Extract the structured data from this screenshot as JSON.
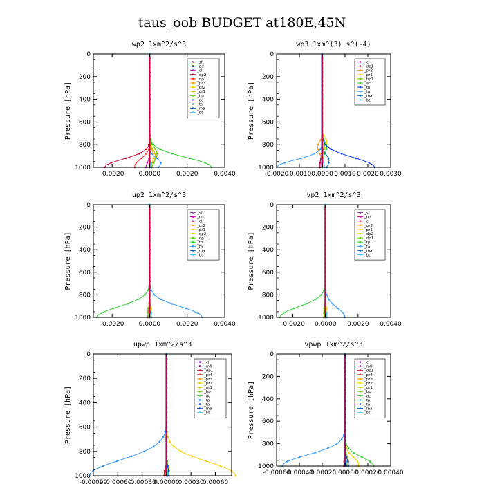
{
  "page_title": "taus_oob  BUDGET at180E,45N",
  "chart_data": [
    {
      "type": "line",
      "title": "wp2   1xm^2/s^3",
      "ylabel": "Pressure [hPa]",
      "ylim": [
        1000,
        0
      ],
      "yticks": [
        0,
        200,
        400,
        600,
        800,
        1000
      ],
      "xlim": [
        -0.003,
        0.004
      ],
      "xticks": [
        -0.002,
        0.0,
        0.002,
        0.004
      ],
      "xticklabels": [
        "-0.0020",
        "0.0000",
        "0.0020",
        "0.0040"
      ],
      "legend_position": "top-right",
      "series": [
        {
          "name": "_sf",
          "color": "#9933cc",
          "shape": "spike",
          "amp": 0,
          "center": 900,
          "width": 40
        },
        {
          "name": "_pd",
          "color": "#660066",
          "shape": "spike",
          "amp": 0,
          "center": 900,
          "width": 40
        },
        {
          "name": "_cl",
          "color": "#cc0099",
          "shape": "spike",
          "amp": -0.0002,
          "center": 1000,
          "width": 60
        },
        {
          "name": "_dp2",
          "color": "#cc0033",
          "shape": "spike",
          "amp": -0.0024,
          "center": 1000,
          "width": 100
        },
        {
          "name": "_dp1",
          "color": "#ff3333",
          "shape": "spike",
          "amp": -0.0008,
          "center": 990,
          "width": 90
        },
        {
          "name": "_pr3",
          "color": "#ff9900",
          "shape": "spike",
          "amp": 0.0002,
          "center": 900,
          "width": 80
        },
        {
          "name": "_pr2",
          "color": "#ffcc00",
          "shape": "spike",
          "amp": 0.0003,
          "center": 900,
          "width": 80
        },
        {
          "name": "_pr1",
          "color": "#cccc00",
          "shape": "spike",
          "amp": 0.0003,
          "center": 900,
          "width": 80
        },
        {
          "name": "_bp",
          "color": "#66cc00",
          "shape": "spike",
          "amp": 0.0004,
          "center": 880,
          "width": 80
        },
        {
          "name": "_ac",
          "color": "#33cc33",
          "shape": "spike",
          "amp": 0.0033,
          "center": 1000,
          "width": 120
        },
        {
          "name": "_ta",
          "color": "#3399ff",
          "shape": "spike",
          "amp": 0.0006,
          "center": 960,
          "width": 60
        },
        {
          "name": "_ma",
          "color": "#0066cc",
          "shape": "spike",
          "amp": 0.0001,
          "center": 990,
          "width": 40
        },
        {
          "name": "_bt",
          "color": "#33ccff",
          "shape": "spike",
          "amp": 0.0001,
          "center": 990,
          "width": 40
        }
      ]
    },
    {
      "type": "line",
      "title": "wp3   1xm^(3) s^(-4)",
      "ylabel": "Pressure [hPa]",
      "ylim": [
        1000,
        0
      ],
      "yticks": [
        0,
        200,
        400,
        600,
        800,
        1000
      ],
      "xlim": [
        -0.002,
        0.003
      ],
      "xticks": [
        -0.002,
        -0.001,
        0.0,
        0.001,
        0.002,
        0.003
      ],
      "xticklabels": [
        "-0.0020",
        "-0.0010",
        "0.0000",
        "0.0010",
        "0.0020",
        "0.0030"
      ],
      "legend_position": "top-right",
      "series": [
        {
          "name": "_cl",
          "color": "#cc0099",
          "shape": "spike",
          "amp": -0.0001,
          "center": 980,
          "width": 80
        },
        {
          "name": "_dp1",
          "color": "#cc0033",
          "shape": "spike",
          "amp": -0.0001,
          "center": 980,
          "width": 80
        },
        {
          "name": "_pr2",
          "color": "#ff9900",
          "shape": "spike",
          "amp": -0.0002,
          "center": 820,
          "width": 60
        },
        {
          "name": "_pr1",
          "color": "#ffcc00",
          "shape": "spike",
          "amp": 0.0002,
          "center": 780,
          "width": 60
        },
        {
          "name": "_bp1",
          "color": "#66cc00",
          "shape": "spike",
          "amp": 0.0001,
          "center": 800,
          "width": 60
        },
        {
          "name": "_ac",
          "color": "#33cc33",
          "shape": "spike",
          "amp": 0.0002,
          "center": 820,
          "width": 60
        },
        {
          "name": "_tp",
          "color": "#0033ff",
          "shape": "spike",
          "amp": 0.0023,
          "center": 1000,
          "width": 120
        },
        {
          "name": "_ta",
          "color": "#3399ff",
          "shape": "spike",
          "amp": -0.002,
          "center": 1000,
          "width": 90
        },
        {
          "name": "_ma",
          "color": "#0066cc",
          "shape": "spike",
          "amp": 0.0003,
          "center": 940,
          "width": 70
        },
        {
          "name": "_bt",
          "color": "#33ccff",
          "shape": "spike",
          "amp": 0.0001,
          "center": 990,
          "width": 40
        }
      ]
    },
    {
      "type": "line",
      "title": "up2   1xm^2/s^3",
      "ylabel": "Pressure [hPa]",
      "ylim": [
        1000,
        0
      ],
      "yticks": [
        0,
        200,
        400,
        600,
        800,
        1000
      ],
      "xlim": [
        -0.003,
        0.004
      ],
      "xticks": [
        -0.002,
        0.0,
        0.002,
        0.004
      ],
      "xticklabels": [
        "-0.0020",
        "0.0000",
        "0.0020",
        "0.0040"
      ],
      "legend_position": "top-right",
      "series": [
        {
          "name": "_sf",
          "color": "#9933cc",
          "shape": "spike",
          "amp": 0,
          "center": 900,
          "width": 40
        },
        {
          "name": "_pd",
          "color": "#cc0099",
          "shape": "spike",
          "amp": 0,
          "center": 900,
          "width": 40
        },
        {
          "name": "_cl",
          "color": "#ff3333",
          "shape": "spike",
          "amp": -0.0001,
          "center": 990,
          "width": 60
        },
        {
          "name": "_pr2",
          "color": "#ff9900",
          "shape": "spike",
          "amp": -0.0001,
          "center": 950,
          "width": 60
        },
        {
          "name": "_pr1",
          "color": "#ffcc00",
          "shape": "spike",
          "amp": 0.0001,
          "center": 950,
          "width": 60
        },
        {
          "name": "_dp2",
          "color": "#cccc00",
          "shape": "spike",
          "amp": -0.0001,
          "center": 950,
          "width": 60
        },
        {
          "name": "_dp1",
          "color": "#66cc00",
          "shape": "spike",
          "amp": -0.0001,
          "center": 950,
          "width": 60
        },
        {
          "name": "_tp",
          "color": "#33cc33",
          "shape": "spike",
          "amp": -0.0028,
          "center": 1000,
          "width": 130
        },
        {
          "name": "_ta",
          "color": "#3399ff",
          "shape": "spike",
          "amp": 0.0028,
          "center": 1000,
          "width": 130
        },
        {
          "name": "_ma",
          "color": "#0066cc",
          "shape": "spike",
          "amp": 0.0001,
          "center": 990,
          "width": 40
        },
        {
          "name": "_bt",
          "color": "#33ccff",
          "shape": "spike",
          "amp": 0.0001,
          "center": 990,
          "width": 40
        }
      ]
    },
    {
      "type": "line",
      "title": "vp2   1xm^2/s^3",
      "ylabel": "Pressure [hPa]",
      "ylim": [
        1000,
        0
      ],
      "yticks": [
        0,
        200,
        400,
        600,
        800,
        1000
      ],
      "xlim": [
        -0.003,
        0.004
      ],
      "xticks": [
        -0.002,
        0.0,
        0.002,
        0.004
      ],
      "xticklabels": [
        "-0.0020",
        "0.0000",
        "0.0020",
        "0.0040"
      ],
      "legend_position": "top-right",
      "series": [
        {
          "name": "_sf",
          "color": "#9933cc",
          "shape": "spike",
          "amp": 0,
          "center": 900,
          "width": 40
        },
        {
          "name": "_pd",
          "color": "#cc0099",
          "shape": "spike",
          "amp": 0,
          "center": 900,
          "width": 40
        },
        {
          "name": "_cl",
          "color": "#ff3333",
          "shape": "spike",
          "amp": -0.0001,
          "center": 990,
          "width": 60
        },
        {
          "name": "_pr2",
          "color": "#ff9900",
          "shape": "spike",
          "amp": -0.0001,
          "center": 950,
          "width": 60
        },
        {
          "name": "_pr1",
          "color": "#ffcc00",
          "shape": "spike",
          "amp": 0.0001,
          "center": 950,
          "width": 60
        },
        {
          "name": "_dp2",
          "color": "#cccc00",
          "shape": "spike",
          "amp": -0.0001,
          "center": 950,
          "width": 60
        },
        {
          "name": "_dp1",
          "color": "#66cc00",
          "shape": "spike",
          "amp": -0.0001,
          "center": 950,
          "width": 60
        },
        {
          "name": "_tp",
          "color": "#33cc33",
          "shape": "spike",
          "amp": -0.0028,
          "center": 1000,
          "width": 130
        },
        {
          "name": "_ta",
          "color": "#3399ff",
          "shape": "spike",
          "amp": 0.0012,
          "center": 1000,
          "width": 120
        },
        {
          "name": "_ma",
          "color": "#0066cc",
          "shape": "spike",
          "amp": 0.0001,
          "center": 990,
          "width": 40
        },
        {
          "name": "_bt",
          "color": "#33ccff",
          "shape": "spike",
          "amp": 0.0001,
          "center": 990,
          "width": 40
        }
      ]
    },
    {
      "type": "line",
      "title": "upwp   1xm^2/s^3",
      "ylabel": "Pressure [hPa]",
      "ylim": [
        1000,
        0
      ],
      "yticks": [
        0,
        200,
        400,
        600,
        800,
        1000
      ],
      "xlim": [
        -0.0009,
        0.0008
      ],
      "xticks": [
        -0.0009,
        -0.0006,
        -0.0003,
        0.0,
        0.0003,
        0.0006
      ],
      "xticklabels": [
        "-0.00090",
        "-0.00060",
        "-0.00030",
        "0.00000",
        "0.00030",
        "0.00060"
      ],
      "legend_position": "top-right",
      "series": [
        {
          "name": "_cl",
          "color": "#9933cc",
          "shape": "spike",
          "amp": 0,
          "center": 900,
          "width": 40
        },
        {
          "name": "_mfl",
          "color": "#660066",
          "shape": "spike",
          "amp": 0,
          "center": 900,
          "width": 40
        },
        {
          "name": "_dp1",
          "color": "#cc0033",
          "shape": "spike",
          "amp": -3e-05,
          "center": 990,
          "width": 60
        },
        {
          "name": "_pr4",
          "color": "#ff3333",
          "shape": "spike",
          "amp": -2e-05,
          "center": 990,
          "width": 60
        },
        {
          "name": "_pr3",
          "color": "#ff9900",
          "shape": "spike",
          "amp": 3e-05,
          "center": 950,
          "width": 60
        },
        {
          "name": "_pr2",
          "color": "#ffcc00",
          "shape": "spike",
          "amp": 0.00085,
          "center": 1000,
          "width": 160
        },
        {
          "name": "_pr1",
          "color": "#cccc00",
          "shape": "spike",
          "amp": 2e-05,
          "center": 950,
          "width": 60
        },
        {
          "name": "_bp",
          "color": "#66cc00",
          "shape": "spike",
          "amp": 2e-05,
          "center": 950,
          "width": 60
        },
        {
          "name": "_ac",
          "color": "#33cc33",
          "shape": "spike",
          "amp": 2e-05,
          "center": 950,
          "width": 60
        },
        {
          "name": "_tp",
          "color": "#3399ff",
          "shape": "spike",
          "amp": -0.00095,
          "center": 1000,
          "width": 180
        },
        {
          "name": "_ta",
          "color": "#0033ff",
          "shape": "spike",
          "amp": 3e-05,
          "center": 980,
          "width": 60
        },
        {
          "name": "_ma",
          "color": "#0066cc",
          "shape": "spike",
          "amp": 1e-05,
          "center": 990,
          "width": 40
        },
        {
          "name": "_bt",
          "color": "#33ccff",
          "shape": "spike",
          "amp": 1e-05,
          "center": 990,
          "width": 40
        }
      ]
    },
    {
      "type": "line",
      "title": "vpwp   1xm^2/s^3",
      "ylabel": "Pressure [hPa]",
      "ylim": [
        1000,
        0
      ],
      "yticks": [
        0,
        200,
        400,
        600,
        800,
        1000
      ],
      "xlim": [
        -0.0006,
        0.0004
      ],
      "xticks": [
        -0.0006,
        -0.0004,
        -0.0002,
        0.0,
        0.0002,
        0.0004
      ],
      "xticklabels": [
        "-0.00060",
        "-0.00040",
        "-0.00020",
        "0.00000",
        "0.00020",
        "0.00040"
      ],
      "legend_position": "top-right",
      "series": [
        {
          "name": "_cl",
          "color": "#9933cc",
          "shape": "spike",
          "amp": 0,
          "center": 900,
          "width": 40
        },
        {
          "name": "_mfl",
          "color": "#660066",
          "shape": "spike",
          "amp": 0,
          "center": 900,
          "width": 40
        },
        {
          "name": "_dp1",
          "color": "#cc0033",
          "shape": "spike",
          "amp": -1e-05,
          "center": 990,
          "width": 60
        },
        {
          "name": "_pr4",
          "color": "#ff3333",
          "shape": "spike",
          "amp": -1e-05,
          "center": 990,
          "width": 60
        },
        {
          "name": "_pr3",
          "color": "#ff9900",
          "shape": "spike",
          "amp": 3e-05,
          "center": 950,
          "width": 60
        },
        {
          "name": "_pr2",
          "color": "#ffcc00",
          "shape": "spike",
          "amp": 0.00012,
          "center": 990,
          "width": 100
        },
        {
          "name": "_pr1",
          "color": "#cccc00",
          "shape": "spike",
          "amp": 2e-05,
          "center": 950,
          "width": 60
        },
        {
          "name": "_bp",
          "color": "#66cc00",
          "shape": "spike",
          "amp": 2e-05,
          "center": 950,
          "width": 60
        },
        {
          "name": "_ac",
          "color": "#33cc33",
          "shape": "spike",
          "amp": 0.00025,
          "center": 1000,
          "width": 110
        },
        {
          "name": "_tp",
          "color": "#3399ff",
          "shape": "spike",
          "amp": -0.00055,
          "center": 1000,
          "width": 140
        },
        {
          "name": "_ta",
          "color": "#0033ff",
          "shape": "spike",
          "amp": 3e-05,
          "center": 980,
          "width": 60
        },
        {
          "name": "_ma",
          "color": "#0066cc",
          "shape": "spike",
          "amp": 1e-05,
          "center": 990,
          "width": 40
        },
        {
          "name": "_bt",
          "color": "#33ccff",
          "shape": "spike",
          "amp": 1e-05,
          "center": 990,
          "width": 40
        }
      ]
    }
  ]
}
